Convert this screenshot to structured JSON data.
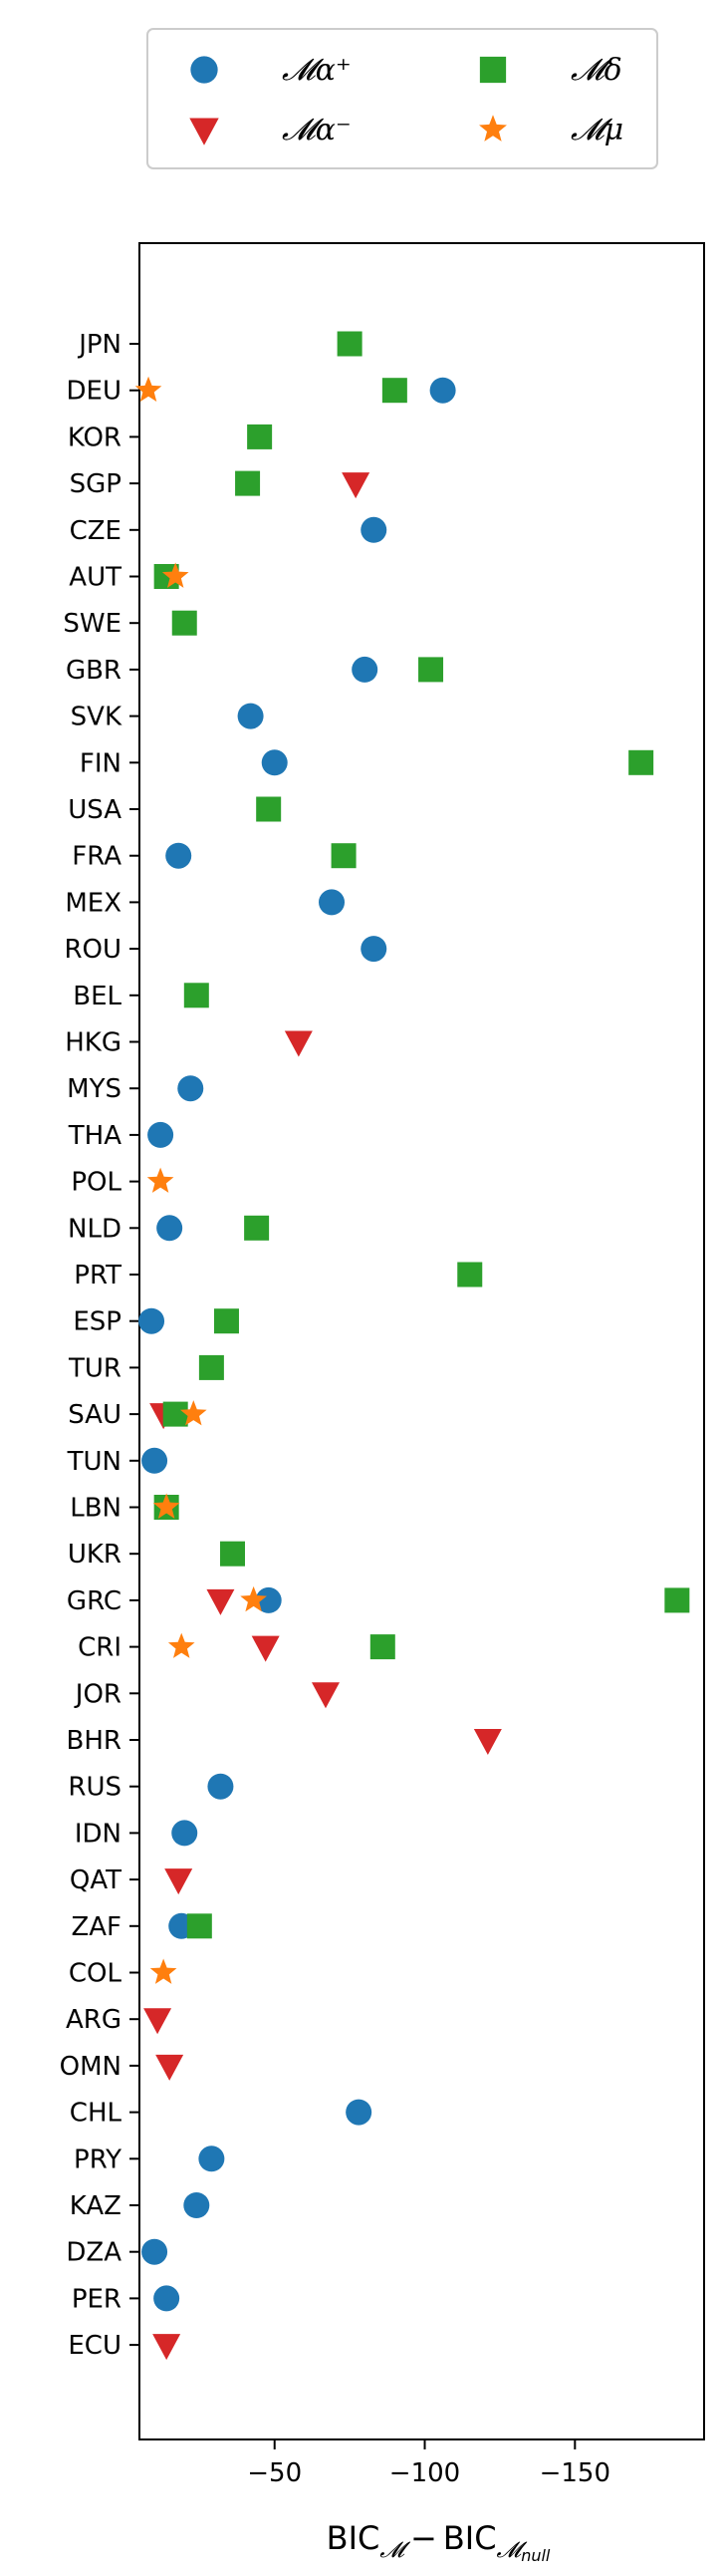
{
  "chart_data": {
    "type": "scatter",
    "xlabel": "BIC_M − BIC_M_null",
    "xlabel_main": "BIC",
    "xlabel_sub1": "𝓜",
    "xlabel_minus": "−",
    "xlabel_main2": "BIC",
    "xlabel_sub2": "𝓜",
    "xlabel_subsub2": "null",
    "xlim": [
      -5,
      -193
    ],
    "x_ticks": [
      {
        "value": -50,
        "label": "−50"
      },
      {
        "value": -100,
        "label": "−100"
      },
      {
        "value": -150,
        "label": "−150"
      }
    ],
    "categories": [
      "JPN",
      "DEU",
      "KOR",
      "SGP",
      "CZE",
      "AUT",
      "SWE",
      "GBR",
      "SVK",
      "FIN",
      "USA",
      "FRA",
      "MEX",
      "ROU",
      "BEL",
      "HKG",
      "MYS",
      "THA",
      "POL",
      "NLD",
      "PRT",
      "ESP",
      "TUR",
      "SAU",
      "TUN",
      "LBN",
      "UKR",
      "GRC",
      "CRI",
      "JOR",
      "BHR",
      "RUS",
      "IDN",
      "QAT",
      "ZAF",
      "COL",
      "ARG",
      "OMN",
      "CHL",
      "PRY",
      "KAZ",
      "DZA",
      "PER",
      "ECU"
    ],
    "legend": {
      "placement": "top-center",
      "entries": [
        {
          "key": "alpha_plus",
          "label": "𝓜α⁺"
        },
        {
          "key": "delta",
          "label": "𝓜δ"
        },
        {
          "key": "alpha_minus",
          "label": "𝓜α⁻"
        },
        {
          "key": "mu",
          "label": "𝓜μ"
        }
      ]
    },
    "series": [
      {
        "key": "alpha_plus",
        "name": "𝓜α⁺",
        "marker": "circle",
        "color": "#1f77b4",
        "points": [
          {
            "y": "DEU",
            "x": -106
          },
          {
            "y": "CZE",
            "x": -83
          },
          {
            "y": "GBR",
            "x": -80
          },
          {
            "y": "SVK",
            "x": -42
          },
          {
            "y": "FIN",
            "x": -50
          },
          {
            "y": "FRA",
            "x": -18
          },
          {
            "y": "MEX",
            "x": -69
          },
          {
            "y": "ROU",
            "x": -83
          },
          {
            "y": "MYS",
            "x": -22
          },
          {
            "y": "THA",
            "x": -12
          },
          {
            "y": "NLD",
            "x": -15
          },
          {
            "y": "ESP",
            "x": -9
          },
          {
            "y": "TUN",
            "x": -10
          },
          {
            "y": "GRC",
            "x": -48
          },
          {
            "y": "RUS",
            "x": -32
          },
          {
            "y": "IDN",
            "x": -20
          },
          {
            "y": "ZAF",
            "x": -19
          },
          {
            "y": "CHL",
            "x": -78
          },
          {
            "y": "PRY",
            "x": -29
          },
          {
            "y": "KAZ",
            "x": -24
          },
          {
            "y": "DZA",
            "x": -10
          },
          {
            "y": "PER",
            "x": -14
          }
        ]
      },
      {
        "key": "alpha_minus",
        "name": "𝓜α⁻",
        "marker": "triangle-down",
        "color": "#d62728",
        "points": [
          {
            "y": "SGP",
            "x": -77
          },
          {
            "y": "HKG",
            "x": -58
          },
          {
            "y": "SAU",
            "x": -13
          },
          {
            "y": "GRC",
            "x": -32
          },
          {
            "y": "CRI",
            "x": -47
          },
          {
            "y": "JOR",
            "x": -67
          },
          {
            "y": "BHR",
            "x": -121
          },
          {
            "y": "QAT",
            "x": -18
          },
          {
            "y": "ARG",
            "x": -11
          },
          {
            "y": "OMN",
            "x": -15
          },
          {
            "y": "ECU",
            "x": -14
          }
        ]
      },
      {
        "key": "delta",
        "name": "𝓜δ",
        "marker": "square",
        "color": "#2ca02c",
        "points": [
          {
            "y": "JPN",
            "x": -75
          },
          {
            "y": "DEU",
            "x": -90
          },
          {
            "y": "KOR",
            "x": -45
          },
          {
            "y": "SGP",
            "x": -41
          },
          {
            "y": "AUT",
            "x": -14
          },
          {
            "y": "SWE",
            "x": -20
          },
          {
            "y": "GBR",
            "x": -102
          },
          {
            "y": "FIN",
            "x": -172
          },
          {
            "y": "USA",
            "x": -48
          },
          {
            "y": "FRA",
            "x": -73
          },
          {
            "y": "BEL",
            "x": -24
          },
          {
            "y": "NLD",
            "x": -44
          },
          {
            "y": "PRT",
            "x": -115
          },
          {
            "y": "ESP",
            "x": -34
          },
          {
            "y": "TUR",
            "x": -29
          },
          {
            "y": "SAU",
            "x": -17
          },
          {
            "y": "LBN",
            "x": -14
          },
          {
            "y": "UKR",
            "x": -36
          },
          {
            "y": "GRC",
            "x": -184
          },
          {
            "y": "CRI",
            "x": -86
          },
          {
            "y": "ZAF",
            "x": -25
          }
        ]
      },
      {
        "key": "mu",
        "name": "𝓜μ",
        "marker": "star",
        "color": "#ff7f0e",
        "points": [
          {
            "y": "DEU",
            "x": -8
          },
          {
            "y": "AUT",
            "x": -17
          },
          {
            "y": "POL",
            "x": -12
          },
          {
            "y": "SAU",
            "x": -23
          },
          {
            "y": "LBN",
            "x": -14
          },
          {
            "y": "GRC",
            "x": -43
          },
          {
            "y": "CRI",
            "x": -19
          },
          {
            "y": "COL",
            "x": -13
          }
        ]
      }
    ]
  }
}
